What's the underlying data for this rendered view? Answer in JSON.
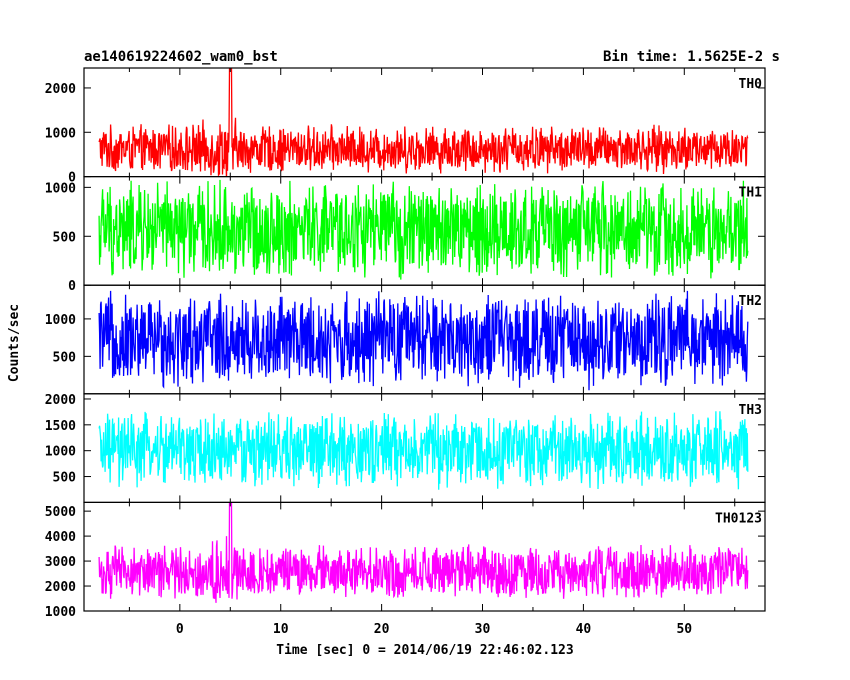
{
  "title_left": "ae140619224602_wam0_bst",
  "title_right": "Bin time: 1.5625E-2 s",
  "chart_data": {
    "type": "line",
    "title": "ae140619224602_wam0_bst",
    "subtitle": "Bin time: 1.5625E-2 s",
    "xlabel": "Time [sec] 0 = 2014/06/19 22:46:02.123",
    "ylabel": "Counts/sec",
    "xlim": [
      -9.5,
      58.0
    ],
    "data_x_range": [
      -8.0,
      56.3
    ],
    "x_ticks": [
      0,
      10,
      20,
      30,
      40,
      50
    ],
    "panels": [
      {
        "name": "TH0",
        "color": "#ff0000",
        "ylim": [
          0,
          2450
        ],
        "y_ticks": [
          0,
          1000,
          2000
        ],
        "summary": {
          "baseline": 620,
          "typical_max": 1200,
          "peak_time": 5.0,
          "peak_value": 2450
        }
      },
      {
        "name": "TH1",
        "color": "#00ff00",
        "ylim": [
          0,
          1110
        ],
        "y_ticks": [
          0,
          500,
          1000
        ],
        "summary": {
          "baseline": 560,
          "typical_max": 1100,
          "peak_time": null,
          "peak_value": 1110
        }
      },
      {
        "name": "TH2",
        "color": "#0000ff",
        "ylim": [
          0,
          1450
        ],
        "y_ticks": [
          500,
          1000
        ],
        "summary": {
          "baseline": 720,
          "typical_max": 1400,
          "peak_time": null,
          "peak_value": 1450
        }
      },
      {
        "name": "TH3",
        "color": "#00ffff",
        "ylim": [
          0,
          2100
        ],
        "y_ticks": [
          500,
          1000,
          1500,
          2000
        ],
        "summary": {
          "baseline": 1000,
          "typical_max": 1800,
          "peak_time": null,
          "peak_value": 2100
        }
      },
      {
        "name": "TH0123",
        "color": "#ff00ff",
        "ylim": [
          1000,
          5350
        ],
        "y_ticks": [
          1000,
          2000,
          3000,
          4000,
          5000
        ],
        "summary": {
          "baseline": 2550,
          "typical_max": 3700,
          "peak_time": 5.0,
          "peak_value": 5350
        }
      }
    ]
  }
}
